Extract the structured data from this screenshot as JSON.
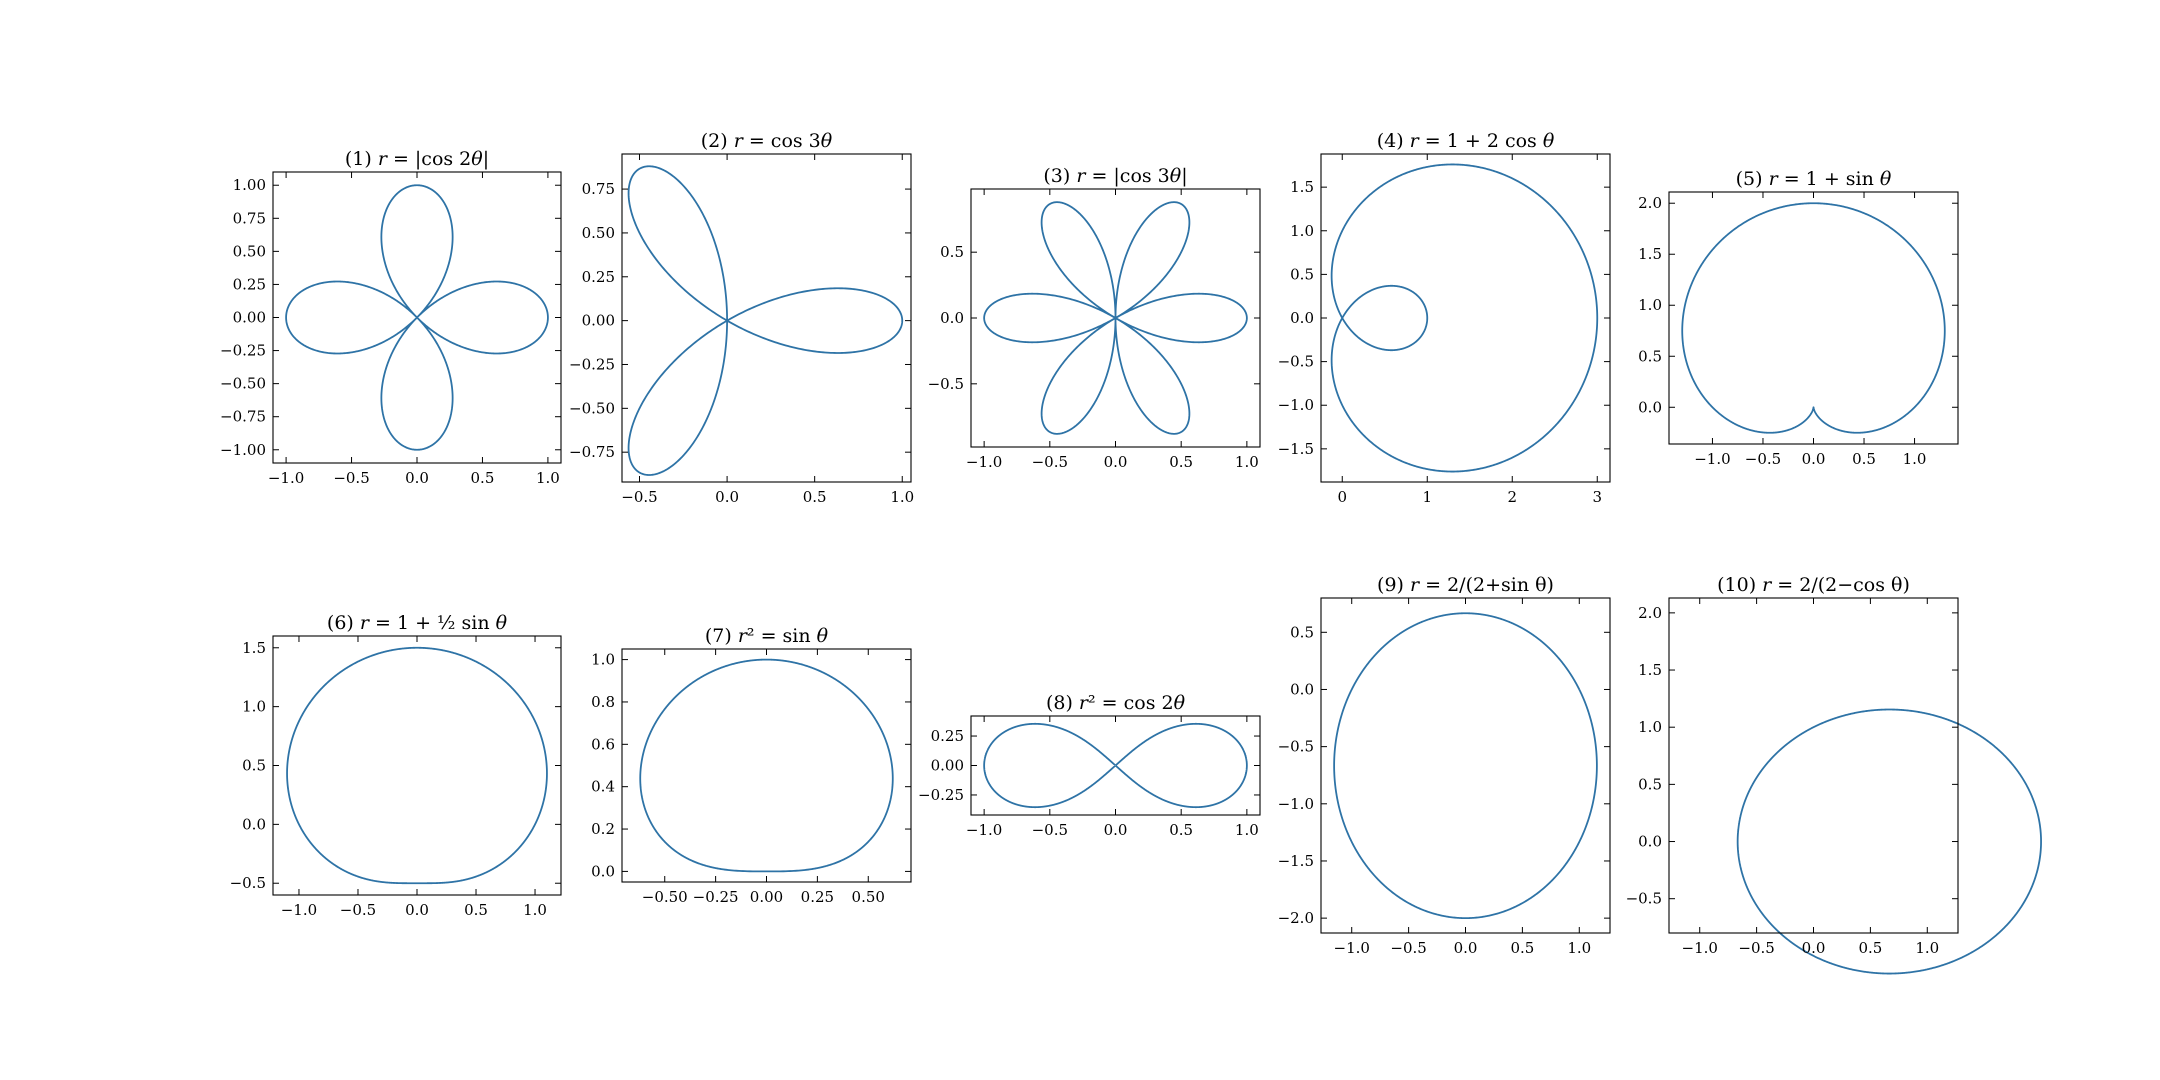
{
  "chart_data": [
    {
      "type": "line",
      "curve": "abs_cos2",
      "title_parts": [
        "(1) ",
        "r",
        " = |cos 2",
        "θ",
        "|"
      ],
      "xlim": [
        -1.1,
        1.1
      ],
      "ylim": [
        -1.1,
        1.1
      ],
      "xticks": [
        -1.0,
        -0.5,
        0.0,
        0.5,
        1.0
      ],
      "xtick_labels": [
        "−1.0",
        "−0.5",
        "0.0",
        "0.5",
        "1.0"
      ],
      "yticks": [
        -1.0,
        -0.75,
        -0.5,
        -0.25,
        0.0,
        0.25,
        0.5,
        0.75,
        1.0
      ],
      "ytick_labels": [
        "−1.00",
        "−0.75",
        "−0.50",
        "−0.25",
        "0.00",
        "0.25",
        "0.50",
        "0.75",
        "1.00"
      ],
      "color": "#2e73a6"
    },
    {
      "type": "line",
      "curve": "cos3",
      "title_parts": [
        "(2) ",
        "r",
        " = cos 3",
        "θ"
      ],
      "xlim": [
        -0.6,
        1.05
      ],
      "ylim": [
        -0.92,
        0.95
      ],
      "xticks": [
        -0.5,
        0.0,
        0.5,
        1.0
      ],
      "xtick_labels": [
        "−0.5",
        "0.0",
        "0.5",
        "1.0"
      ],
      "yticks": [
        -0.75,
        -0.5,
        -0.25,
        0.0,
        0.25,
        0.5,
        0.75
      ],
      "ytick_labels": [
        "−0.75",
        "−0.50",
        "−0.25",
        "0.00",
        "0.25",
        "0.50",
        "0.75"
      ],
      "color": "#2e73a6"
    },
    {
      "type": "line",
      "curve": "abs_cos3",
      "title_parts": [
        "(3) ",
        "r",
        " = |cos 3",
        "θ",
        "|"
      ],
      "xlim": [
        -1.1,
        1.1
      ],
      "ylim": [
        -0.98,
        0.98
      ],
      "xticks": [
        -1.0,
        -0.5,
        0.0,
        0.5,
        1.0
      ],
      "xtick_labels": [
        "−1.0",
        "−0.5",
        "0.0",
        "0.5",
        "1.0"
      ],
      "yticks": [
        -0.5,
        0.0,
        0.5
      ],
      "ytick_labels": [
        "−0.5",
        "0.0",
        "0.5"
      ],
      "color": "#2e73a6"
    },
    {
      "type": "line",
      "curve": "limacon_cos",
      "title_parts": [
        "(4) ",
        "r",
        " = 1 + 2 cos ",
        "θ"
      ],
      "xlim": [
        -0.25,
        3.15
      ],
      "ylim": [
        -1.88,
        1.88
      ],
      "xticks": [
        0,
        1,
        2,
        3
      ],
      "xtick_labels": [
        "0",
        "1",
        "2",
        "3"
      ],
      "yticks": [
        -1.5,
        -1.0,
        -0.5,
        0.0,
        0.5,
        1.0,
        1.5
      ],
      "ytick_labels": [
        "−1.5",
        "−1.0",
        "−0.5",
        "0.0",
        "0.5",
        "1.0",
        "1.5"
      ],
      "color": "#2e73a6"
    },
    {
      "type": "line",
      "curve": "cardioid_sin",
      "title_parts": [
        "(5) ",
        "r",
        " = 1 + sin ",
        "θ"
      ],
      "xlim": [
        -1.43,
        1.43
      ],
      "ylim": [
        -0.36,
        2.11
      ],
      "xticks": [
        -1.0,
        -0.5,
        0.0,
        0.5,
        1.0
      ],
      "xtick_labels": [
        "−1.0",
        "−0.5",
        "0.0",
        "0.5",
        "1.0"
      ],
      "yticks": [
        0.0,
        0.5,
        1.0,
        1.5,
        2.0
      ],
      "ytick_labels": [
        "0.0",
        "0.5",
        "1.0",
        "1.5",
        "2.0"
      ],
      "color": "#2e73a6"
    },
    {
      "type": "line",
      "curve": "limacon_half_sin",
      "title_parts": [
        "(6) ",
        "r",
        " = 1 + ½ sin ",
        "θ"
      ],
      "xlim": [
        -1.22,
        1.22
      ],
      "ylim": [
        -0.6,
        1.6
      ],
      "xticks": [
        -1.0,
        -0.5,
        0.0,
        0.5,
        1.0
      ],
      "xtick_labels": [
        "−1.0",
        "−0.5",
        "0.0",
        "0.5",
        "1.0"
      ],
      "yticks": [
        -0.5,
        0.0,
        0.5,
        1.0,
        1.5
      ],
      "ytick_labels": [
        "−0.5",
        "0.0",
        "0.5",
        "1.0",
        "1.5"
      ],
      "color": "#2e73a6"
    },
    {
      "type": "line",
      "curve": "r2_sin",
      "title_parts": [
        "(7) ",
        "r",
        "² = sin ",
        "θ"
      ],
      "xlim": [
        -0.71,
        0.71
      ],
      "ylim": [
        -0.05,
        1.05
      ],
      "xticks": [
        -0.5,
        -0.25,
        0.0,
        0.25,
        0.5
      ],
      "xtick_labels": [
        "−0.50",
        "−0.25",
        "0.00",
        "0.25",
        "0.50"
      ],
      "yticks": [
        0.0,
        0.2,
        0.4,
        0.6,
        0.8,
        1.0
      ],
      "ytick_labels": [
        "0.0",
        "0.2",
        "0.4",
        "0.6",
        "0.8",
        "1.0"
      ],
      "color": "#2e73a6"
    },
    {
      "type": "line",
      "curve": "lemniscate",
      "title_parts": [
        "(8) ",
        "r",
        "² = cos 2",
        "θ"
      ],
      "xlim": [
        -1.1,
        1.1
      ],
      "ylim": [
        -0.42,
        0.42
      ],
      "xticks": [
        -1.0,
        -0.5,
        0.0,
        0.5,
        1.0
      ],
      "xtick_labels": [
        "−1.0",
        "−0.5",
        "0.0",
        "0.5",
        "1.0"
      ],
      "yticks": [
        -0.25,
        0.0,
        0.25
      ],
      "ytick_labels": [
        "−0.25",
        "0.00",
        "0.25"
      ],
      "color": "#2e73a6"
    },
    {
      "type": "line",
      "curve": "conic_plus",
      "title_parts": [
        "(9) ",
        "r",
        " = 2/(2+sin θ)"
      ],
      "xlim": [
        -1.27,
        1.27
      ],
      "ylim": [
        -2.13,
        0.8
      ],
      "xticks": [
        -1.0,
        -0.5,
        0.0,
        0.5,
        1.0
      ],
      "xtick_labels": [
        "−1.0",
        "−0.5",
        "0.0",
        "0.5",
        "1.0"
      ],
      "yticks": [
        -2.0,
        -1.5,
        -1.0,
        -0.5,
        0.0,
        0.5
      ],
      "ytick_labels": [
        "−2.0",
        "−1.5",
        "−1.0",
        "−0.5",
        "0.0",
        "0.5"
      ],
      "color": "#2e73a6"
    },
    {
      "type": "line",
      "curve": "conic_minus",
      "title_parts": [
        "(10) ",
        "r",
        " = 2/(2−cos θ)"
      ],
      "xlim": [
        -1.27,
        1.27
      ],
      "ylim": [
        -0.8,
        2.13
      ],
      "xticks": [
        -1.0,
        -0.5,
        0.0,
        0.5,
        1.0
      ],
      "xtick_labels": [
        "−1.0",
        "−0.5",
        "0.0",
        "0.5",
        "1.0"
      ],
      "yticks": [
        -0.5,
        0.0,
        0.5,
        1.0,
        1.5,
        2.0
      ],
      "ytick_labels": [
        "−0.5",
        "0.0",
        "0.5",
        "1.0",
        "1.5",
        "2.0"
      ],
      "color": "#2e73a6"
    }
  ]
}
